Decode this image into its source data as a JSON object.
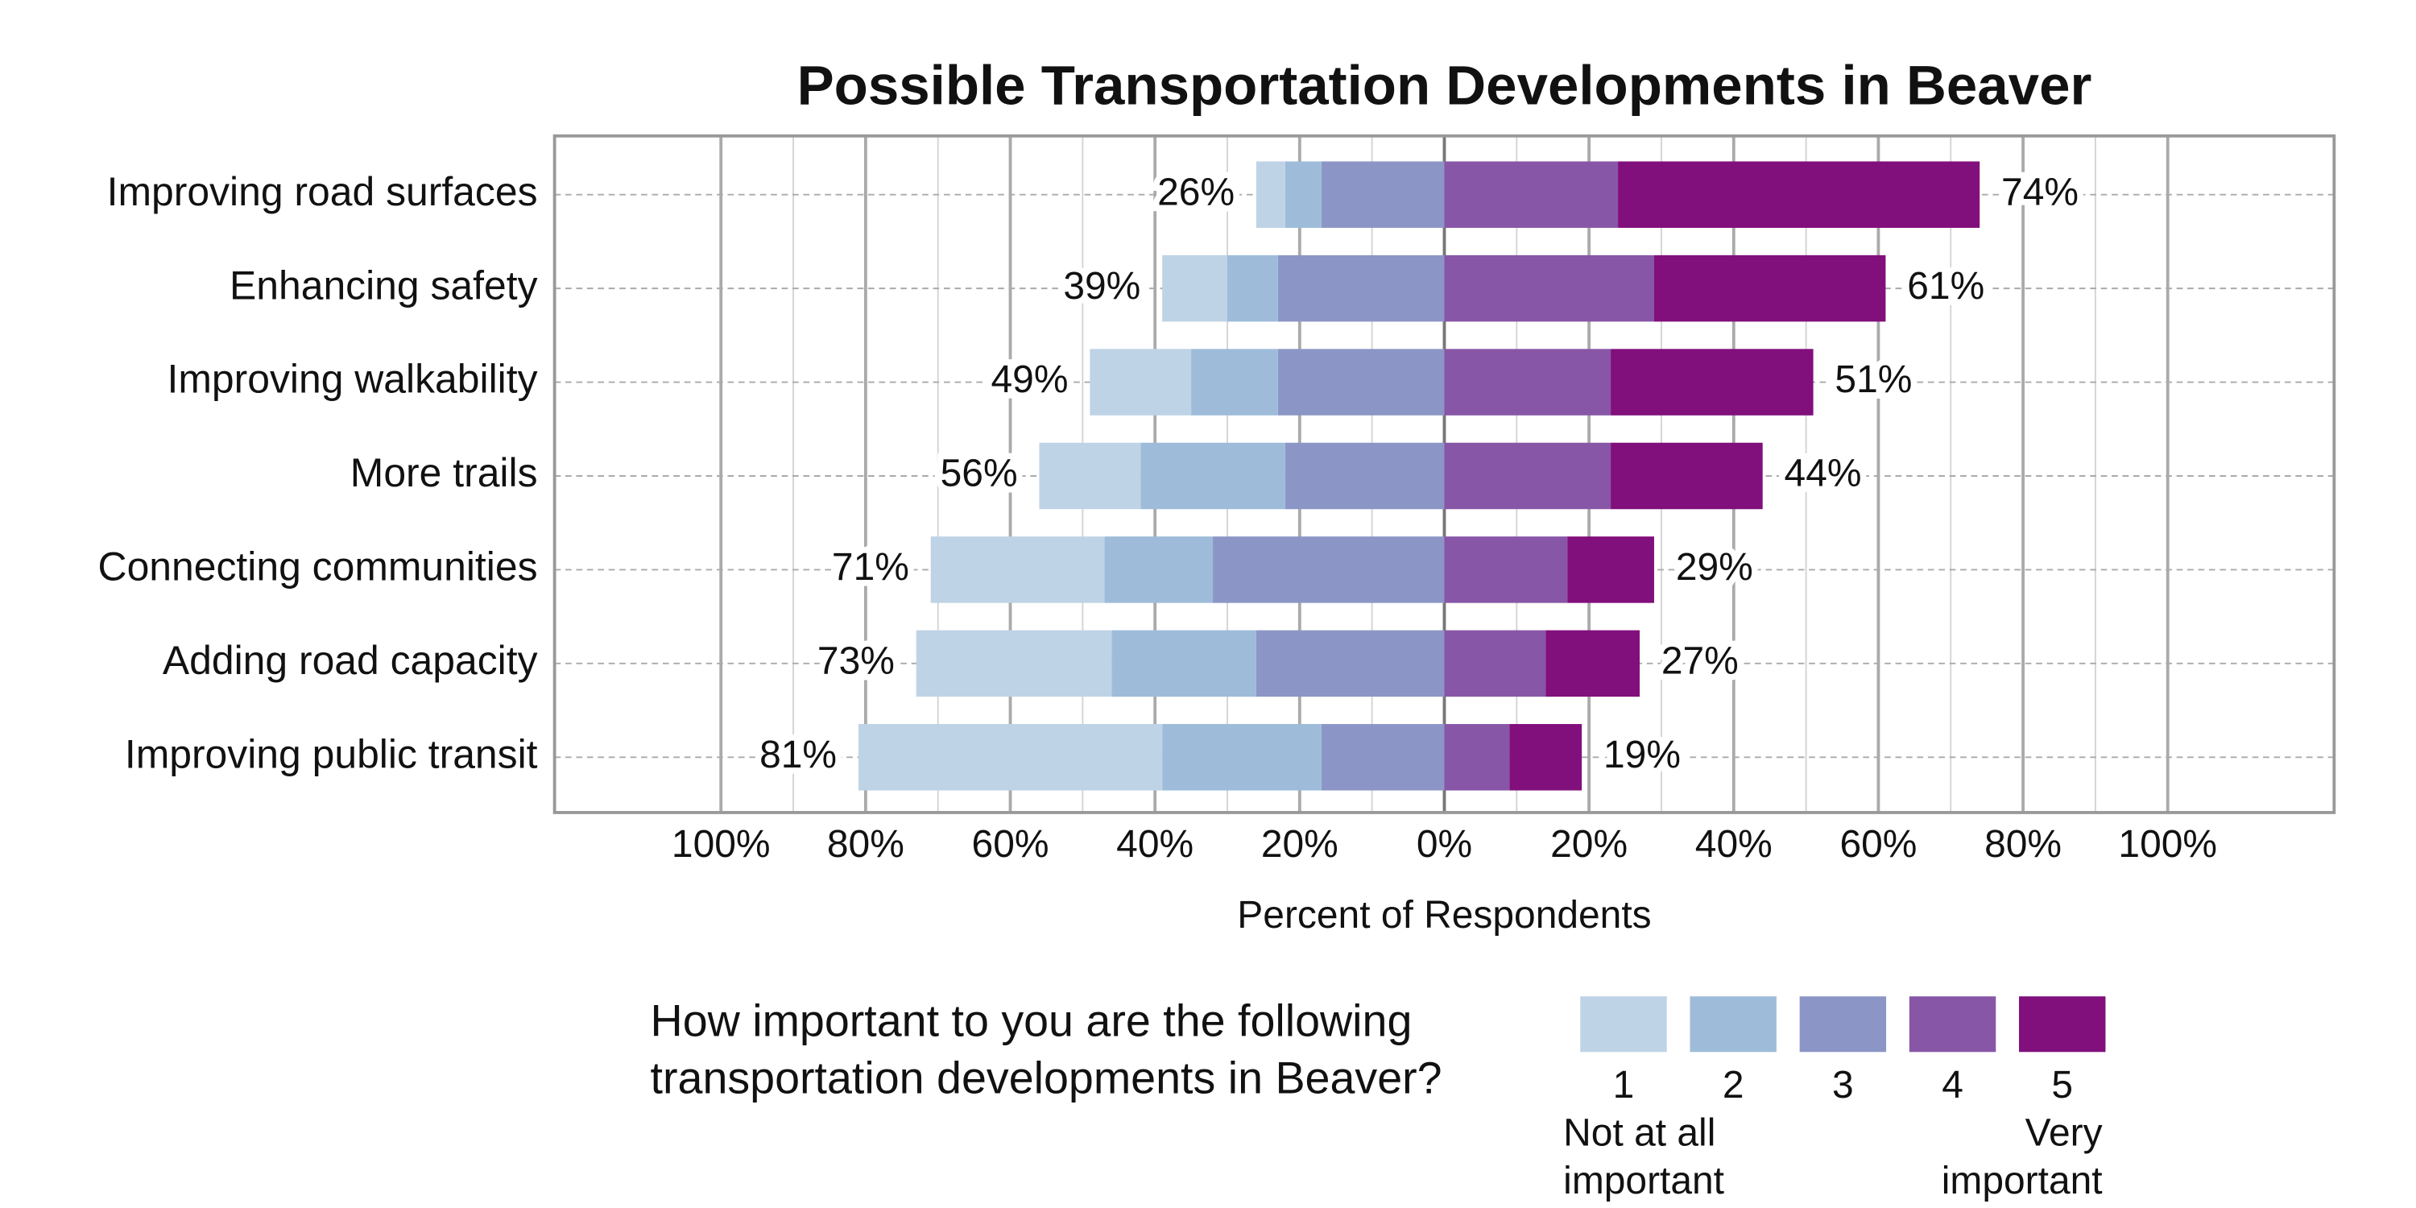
{
  "chart_data": {
    "type": "diverging_stacked_bar",
    "title": "Possible Transportation Developments in Beaver",
    "x_label": "Percent of Respondents",
    "categories": [
      "Improving road surfaces",
      "Enhancing safety",
      "Improving walkability",
      "More trails",
      "Connecting communities",
      "Adding road capacity",
      "Improving public transit"
    ],
    "series": [
      {
        "name": "1",
        "color": "#bfd3e6",
        "side": "negative",
        "values": [
          4,
          9,
          14,
          14,
          24,
          27,
          42
        ]
      },
      {
        "name": "2",
        "color": "#9ebcda",
        "side": "negative",
        "values": [
          5,
          7,
          12,
          20,
          15,
          20,
          22
        ]
      },
      {
        "name": "3",
        "color": "#8c96c6",
        "side": "negative",
        "values": [
          17,
          23,
          23,
          22,
          32,
          26,
          17
        ]
      },
      {
        "name": "4",
        "color": "#8856a7",
        "side": "positive",
        "values": [
          24,
          29,
          23,
          23,
          17,
          14,
          9
        ]
      },
      {
        "name": "5",
        "color": "#810f7c",
        "side": "positive",
        "values": [
          50,
          32,
          28,
          21,
          12,
          13,
          10
        ]
      }
    ],
    "left_total_labels": [
      "26%",
      "39%",
      "49%",
      "56%",
      "71%",
      "73%",
      "81%"
    ],
    "right_total_labels": [
      "74%",
      "61%",
      "51%",
      "44%",
      "29%",
      "27%",
      "19%"
    ],
    "xlim": [
      -123,
      123
    ],
    "xticks": [
      {
        "value": -100,
        "label": "100%"
      },
      {
        "value": -80,
        "label": "80%"
      },
      {
        "value": -60,
        "label": "60%"
      },
      {
        "value": -40,
        "label": "40%"
      },
      {
        "value": -20,
        "label": "20%"
      },
      {
        "value": 0,
        "label": "0%"
      },
      {
        "value": 20,
        "label": "20%"
      },
      {
        "value": 40,
        "label": "40%"
      },
      {
        "value": 60,
        "label": "60%"
      },
      {
        "value": 80,
        "label": "80%"
      },
      {
        "value": 100,
        "label": "100%"
      }
    ],
    "grid": true,
    "legend": {
      "question": [
        "How important to you are the following",
        "transportation developments in Beaver?"
      ],
      "low_label": [
        "Not at all",
        "important"
      ],
      "high_label": [
        "Very",
        "important"
      ]
    }
  }
}
